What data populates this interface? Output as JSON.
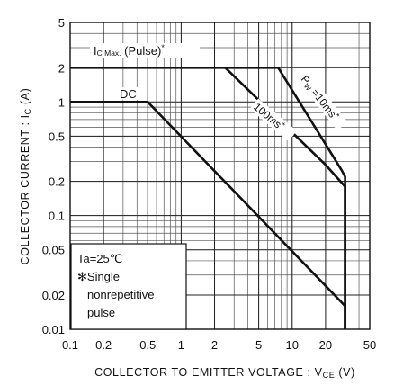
{
  "chart_data": {
    "type": "line",
    "xscale": "log",
    "yscale": "log",
    "xlim": [
      0.1,
      50
    ],
    "ylim": [
      0.01,
      5
    ],
    "xlabel": "COLLECTOR  TO  EMITTER  VOLTAGE : V",
    "xlabel_sub": "CE",
    "xlabel_unit": "(V)",
    "ylabel": "COLLECTOR  CURRENT : I",
    "ylabel_sub": "C",
    "ylabel_unit": "(A)",
    "x_ticks": [
      0.1,
      0.2,
      0.5,
      1,
      2,
      5,
      10,
      20,
      50
    ],
    "x_tick_labels": [
      "0.1",
      "0.2",
      "0.5",
      "1",
      "2",
      "5",
      "10",
      "20",
      "50"
    ],
    "y_ticks": [
      0.01,
      0.02,
      0.05,
      0.1,
      0.2,
      0.5,
      1,
      2,
      5
    ],
    "y_tick_labels": [
      "0.01",
      "0.02",
      "0.05",
      "0.1",
      "0.2",
      "0.5",
      "1",
      "2",
      "5"
    ],
    "grid": true,
    "series": [
      {
        "name": "DC",
        "points": [
          [
            0.1,
            1
          ],
          [
            0.5,
            1
          ],
          [
            30,
            0.016
          ],
          [
            30,
            0.01
          ]
        ]
      },
      {
        "name": "100ms",
        "points": [
          [
            2.5,
            2
          ],
          [
            20,
            0.28
          ],
          [
            30,
            0.18
          ],
          [
            30,
            0.01
          ]
        ]
      },
      {
        "name": "Pw = 10ms",
        "points": [
          [
            7.5,
            2
          ],
          [
            28,
            0.25
          ],
          [
            30,
            0.22
          ],
          [
            30,
            0.01
          ]
        ]
      },
      {
        "name": "Ic max (Pulse)",
        "points": [
          [
            0.1,
            2
          ],
          [
            7.5,
            2
          ]
        ]
      }
    ],
    "annotations": {
      "dc": "DC",
      "icmax_main": "I",
      "icmax_sub": "C Max.",
      "icmax_rest": " (Pulse)",
      "star": "*",
      "t100": "100ms",
      "t10_p": "P",
      "t10_sub": "W",
      "t10_rest": " =10ms"
    },
    "legend_box": {
      "line1": "Ta=25℃",
      "line2": "✻Single",
      "line3": "nonrepetitive",
      "line4": "pulse"
    }
  }
}
